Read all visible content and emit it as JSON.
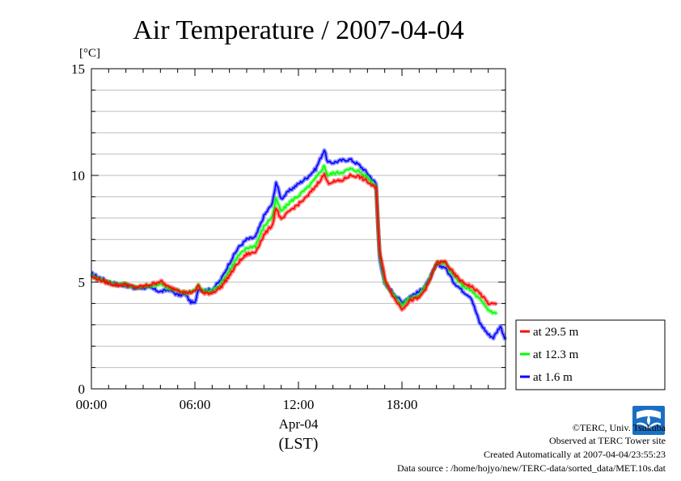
{
  "chart_data": {
    "type": "line",
    "title": "Air Temperature / 2007-04-04",
    "ylabel": "[°C]",
    "xlabel": "Apr-04",
    "xlabel2": "(LST)",
    "xlim": [
      0,
      24
    ],
    "ylim": [
      0,
      15
    ],
    "x_ticks": [
      {
        "value": 0,
        "label": "00:00"
      },
      {
        "value": 6,
        "label": "06:00"
      },
      {
        "value": 12,
        "label": "12:00"
      },
      {
        "value": 18,
        "label": "18:00"
      }
    ],
    "y_ticks": [
      {
        "value": 0,
        "label": "0"
      },
      {
        "value": 5,
        "label": "5"
      },
      {
        "value": 10,
        "label": "10"
      },
      {
        "value": 15,
        "label": "15"
      }
    ],
    "grid_major_y": 1,
    "legend": "bottom-right outside",
    "series": [
      {
        "name": "at 29.5 m",
        "color": "#ff0000",
        "points": [
          [
            0,
            5.25
          ],
          [
            0.5,
            5.1
          ],
          [
            1,
            4.95
          ],
          [
            1.5,
            4.85
          ],
          [
            2,
            4.9
          ],
          [
            2.5,
            4.75
          ],
          [
            3,
            4.8
          ],
          [
            3.5,
            4.9
          ],
          [
            4,
            5.05
          ],
          [
            4.5,
            4.75
          ],
          [
            5,
            4.65
          ],
          [
            5.5,
            4.5
          ],
          [
            6,
            4.55
          ],
          [
            6.2,
            4.85
          ],
          [
            6.5,
            4.45
          ],
          [
            7,
            4.5
          ],
          [
            7.5,
            4.75
          ],
          [
            8,
            5.3
          ],
          [
            8.5,
            5.9
          ],
          [
            9,
            6.3
          ],
          [
            9.5,
            6.4
          ],
          [
            10,
            7.2
          ],
          [
            10.5,
            7.7
          ],
          [
            10.7,
            8.5
          ],
          [
            11,
            7.9
          ],
          [
            11.5,
            8.35
          ],
          [
            12,
            8.65
          ],
          [
            12.5,
            9.0
          ],
          [
            13,
            9.5
          ],
          [
            13.5,
            10.05
          ],
          [
            13.7,
            9.65
          ],
          [
            14,
            9.7
          ],
          [
            14.5,
            9.75
          ],
          [
            15,
            10.0
          ],
          [
            15.5,
            9.95
          ],
          [
            16,
            9.7
          ],
          [
            16.3,
            9.5
          ],
          [
            16.5,
            9.4
          ],
          [
            16.7,
            6.5
          ],
          [
            17,
            5.2
          ],
          [
            17.5,
            4.3
          ],
          [
            18,
            3.75
          ],
          [
            18.5,
            4.15
          ],
          [
            19,
            4.25
          ],
          [
            19.5,
            4.85
          ],
          [
            20,
            5.9
          ],
          [
            20.5,
            5.95
          ],
          [
            21,
            5.4
          ],
          [
            21.5,
            5.0
          ],
          [
            22,
            4.8
          ],
          [
            22.5,
            4.5
          ],
          [
            23,
            4.0
          ],
          [
            23.5,
            3.95
          ]
        ]
      },
      {
        "name": "at 12.3 m",
        "color": "#00ff00",
        "points": [
          [
            0,
            5.3
          ],
          [
            0.5,
            5.15
          ],
          [
            1,
            5.0
          ],
          [
            1.5,
            4.9
          ],
          [
            2,
            4.9
          ],
          [
            2.5,
            4.75
          ],
          [
            3,
            4.8
          ],
          [
            3.5,
            4.85
          ],
          [
            4,
            4.9
          ],
          [
            4.5,
            4.7
          ],
          [
            5,
            4.6
          ],
          [
            5.5,
            4.5
          ],
          [
            6,
            4.6
          ],
          [
            6.2,
            4.85
          ],
          [
            6.5,
            4.55
          ],
          [
            7,
            4.6
          ],
          [
            7.5,
            4.9
          ],
          [
            8,
            5.55
          ],
          [
            8.5,
            6.2
          ],
          [
            9,
            6.6
          ],
          [
            9.5,
            6.7
          ],
          [
            10,
            7.6
          ],
          [
            10.5,
            8.1
          ],
          [
            10.7,
            8.9
          ],
          [
            11,
            8.3
          ],
          [
            11.5,
            8.75
          ],
          [
            12,
            9.05
          ],
          [
            12.5,
            9.4
          ],
          [
            13,
            9.85
          ],
          [
            13.5,
            10.45
          ],
          [
            13.7,
            10.0
          ],
          [
            14,
            10.1
          ],
          [
            14.5,
            10.15
          ],
          [
            15,
            10.3
          ],
          [
            15.5,
            10.2
          ],
          [
            16,
            9.9
          ],
          [
            16.3,
            9.65
          ],
          [
            16.5,
            9.5
          ],
          [
            16.7,
            6.4
          ],
          [
            17,
            5.0
          ],
          [
            17.5,
            4.4
          ],
          [
            18,
            3.9
          ],
          [
            18.5,
            4.3
          ],
          [
            19,
            4.4
          ],
          [
            19.5,
            4.95
          ],
          [
            20,
            5.9
          ],
          [
            20.5,
            5.9
          ],
          [
            21,
            5.3
          ],
          [
            21.5,
            4.85
          ],
          [
            22,
            4.6
          ],
          [
            22.5,
            4.2
          ],
          [
            23,
            3.7
          ],
          [
            23.5,
            3.5
          ]
        ]
      },
      {
        "name": "at 1.6 m",
        "color": "#0000ff",
        "points": [
          [
            0,
            5.4
          ],
          [
            0.5,
            5.2
          ],
          [
            1,
            5.0
          ],
          [
            1.5,
            4.9
          ],
          [
            2,
            4.85
          ],
          [
            2.5,
            4.7
          ],
          [
            3,
            4.75
          ],
          [
            3.5,
            4.7
          ],
          [
            4,
            4.55
          ],
          [
            4.5,
            4.65
          ],
          [
            5,
            4.4
          ],
          [
            5.5,
            4.4
          ],
          [
            5.7,
            4.1
          ],
          [
            6,
            4.0
          ],
          [
            6.2,
            4.7
          ],
          [
            6.5,
            4.6
          ],
          [
            7,
            4.65
          ],
          [
            7.5,
            5.1
          ],
          [
            8,
            5.9
          ],
          [
            8.5,
            6.6
          ],
          [
            9,
            7.0
          ],
          [
            9.5,
            7.1
          ],
          [
            10,
            8.1
          ],
          [
            10.5,
            8.7
          ],
          [
            10.7,
            9.7
          ],
          [
            11,
            8.9
          ],
          [
            11.5,
            9.3
          ],
          [
            12,
            9.6
          ],
          [
            12.5,
            9.9
          ],
          [
            13,
            10.3
          ],
          [
            13.5,
            11.2
          ],
          [
            13.7,
            10.6
          ],
          [
            14,
            10.6
          ],
          [
            14.5,
            10.7
          ],
          [
            15,
            10.75
          ],
          [
            15.5,
            10.5
          ],
          [
            16,
            10.1
          ],
          [
            16.3,
            9.8
          ],
          [
            16.5,
            9.6
          ],
          [
            16.7,
            6.2
          ],
          [
            17,
            4.9
          ],
          [
            17.5,
            4.5
          ],
          [
            18,
            4.05
          ],
          [
            18.5,
            4.35
          ],
          [
            19,
            4.55
          ],
          [
            19.5,
            5.0
          ],
          [
            20,
            5.8
          ],
          [
            20.5,
            5.7
          ],
          [
            21,
            5.0
          ],
          [
            21.5,
            4.6
          ],
          [
            22,
            4.3
          ],
          [
            22.5,
            3.1
          ],
          [
            23,
            2.55
          ],
          [
            23.3,
            2.4
          ],
          [
            23.7,
            2.95
          ],
          [
            24,
            2.3
          ]
        ]
      }
    ]
  },
  "credits": {
    "copyright": "©TERC, Univ. Tsukuba",
    "observed": "Observed at TERC Tower site",
    "created": "Created Automatically at 2007-04-04/23:55:23",
    "source": "Data source : /home/hojyo/new/TERC-data/sorted_data/MET.10s.dat"
  },
  "logo": {
    "text": "TERC",
    "color": "#1a6fc4"
  }
}
